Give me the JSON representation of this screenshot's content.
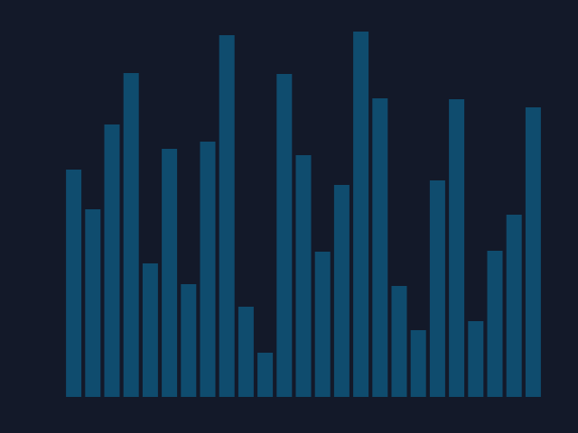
{
  "chart_data": {
    "type": "bar",
    "values": [
      252,
      208,
      302,
      359,
      148,
      275,
      125,
      283,
      401,
      100,
      49,
      358,
      268,
      161,
      235,
      405,
      331,
      123,
      74,
      240,
      330,
      84,
      162,
      202,
      321
    ],
    "color": "#0f4c6e",
    "ylim": [
      0,
      440
    ]
  }
}
